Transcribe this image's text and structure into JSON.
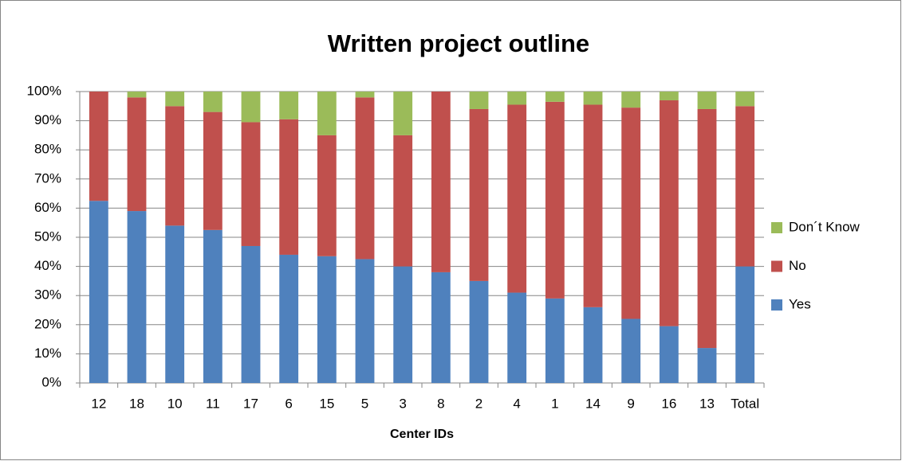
{
  "chart_data": {
    "type": "stacked_bar",
    "title": "Written project outline",
    "x_label": "Center IDs",
    "categories": [
      "12",
      "18",
      "10",
      "11",
      "17",
      "6",
      "15",
      "5",
      "3",
      "8",
      "2",
      "4",
      "1",
      "14",
      "9",
      "16",
      "13",
      "Total"
    ],
    "series": [
      {
        "name": "Yes",
        "color": "#4f81bd",
        "values": [
          62.5,
          59,
          54,
          52.5,
          47,
          44,
          43.5,
          42.5,
          40,
          38,
          35,
          31,
          29,
          26,
          22,
          19.5,
          12,
          40
        ]
      },
      {
        "name": "No",
        "color": "#c0504d",
        "values": [
          37.5,
          39,
          41,
          40.5,
          42.5,
          46.5,
          41.5,
          55.5,
          45,
          62,
          59,
          64.5,
          67.5,
          69.5,
          72.5,
          77.5,
          82,
          55
        ]
      },
      {
        "name": "Don´t Know",
        "color": "#9bbb59",
        "values": [
          0,
          2,
          5,
          7,
          10.5,
          9.5,
          15,
          2,
          15,
          0,
          6,
          4.5,
          3.5,
          4.5,
          5.5,
          3,
          6,
          5
        ]
      }
    ],
    "ylim": [
      0,
      100
    ],
    "yticks": [
      {
        "value": 0,
        "label": "0%"
      },
      {
        "value": 10,
        "label": "10%"
      },
      {
        "value": 20,
        "label": "20%"
      },
      {
        "value": 30,
        "label": "30%"
      },
      {
        "value": 40,
        "label": "40%"
      },
      {
        "value": 50,
        "label": "50%"
      },
      {
        "value": 60,
        "label": "60%"
      },
      {
        "value": 70,
        "label": "70%"
      },
      {
        "value": 80,
        "label": "80%"
      },
      {
        "value": 90,
        "label": "90%"
      },
      {
        "value": 100,
        "label": "100%"
      }
    ],
    "grid": true,
    "legend": "right"
  }
}
